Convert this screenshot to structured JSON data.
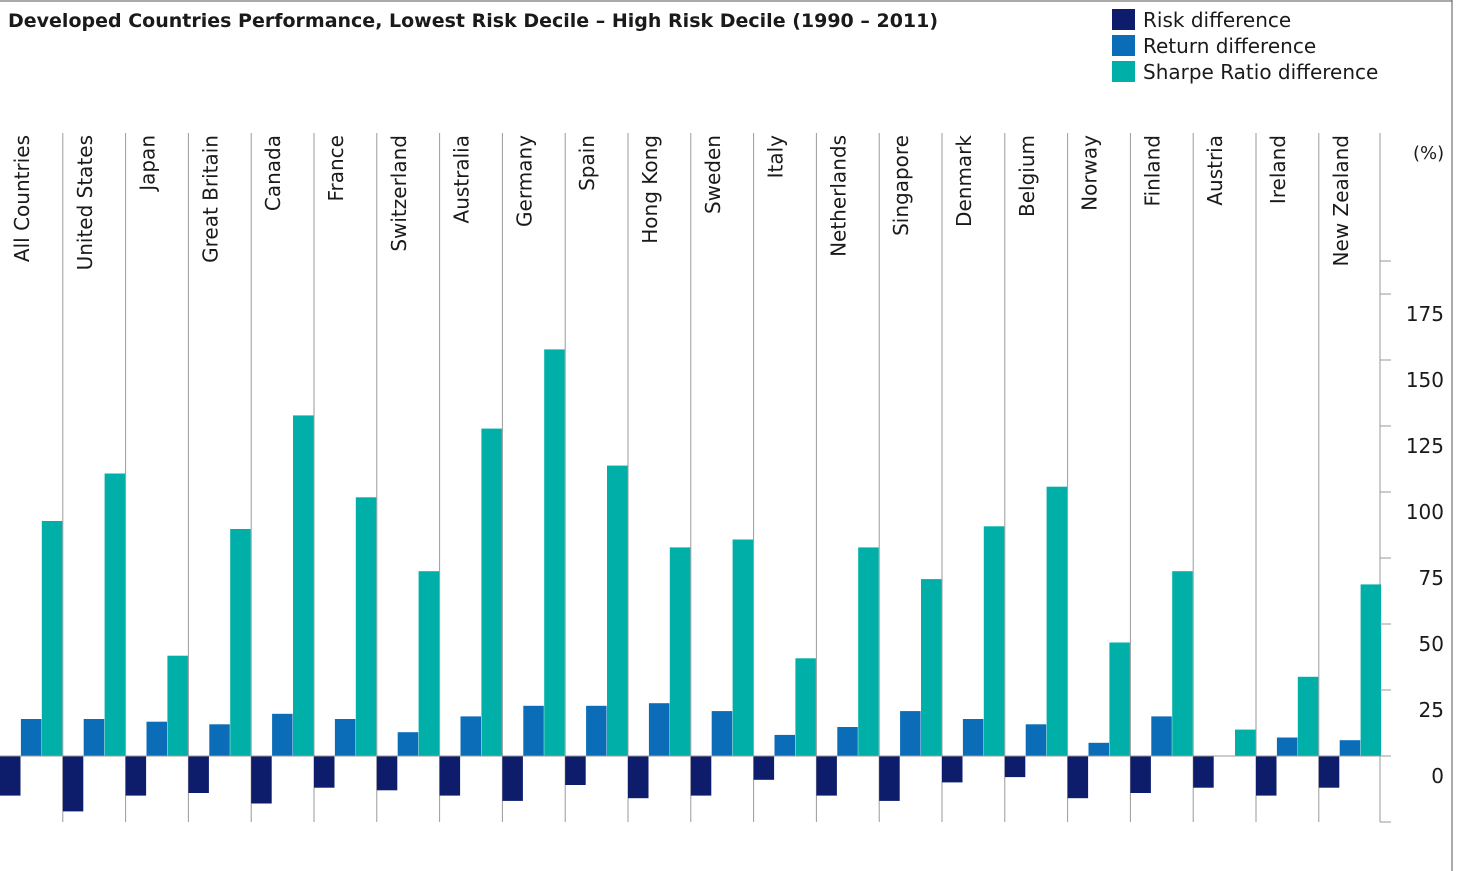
{
  "chart_data": {
    "type": "bar",
    "title": "Developed Countries Performance, Lowest Risk Decile – High Risk Decile (1990 – 2011)",
    "ylabel": "(%)",
    "ylim": [
      -25,
      185
    ],
    "yticks": [
      0,
      25,
      50,
      75,
      100,
      125,
      150,
      175
    ],
    "legend_position": "top-right",
    "grid": false,
    "categories": [
      "All Countries",
      "United States",
      "Japan",
      "Great Britain",
      "Canada",
      "France",
      "Switzerland",
      "Australia",
      "Germany",
      "Spain",
      "Hong Kong",
      "Sweden",
      "Italy",
      "Netherlands",
      "Singapore",
      "Denmark",
      "Belgium",
      "Norway",
      "Finland",
      "Austria",
      "Ireland",
      "New Zealand"
    ],
    "series": [
      {
        "name": "Risk difference",
        "color": "#0d1c6b",
        "values": [
          -15,
          -21,
          -15,
          -14,
          -18,
          -12,
          -13,
          -15,
          -17,
          -11,
          -16,
          -15,
          -9,
          -15,
          -17,
          -10,
          -8,
          -16,
          -14,
          -12,
          -15,
          -12
        ]
      },
      {
        "name": "Return difference",
        "color": "#0b6cb7",
        "values": [
          14,
          14,
          13,
          12,
          16,
          14,
          9,
          15,
          19,
          19,
          20,
          17,
          8,
          11,
          17,
          14,
          12,
          5,
          15,
          0,
          7,
          6
        ]
      },
      {
        "name": "Sharpe Ratio difference",
        "color": "#00b0a8",
        "values": [
          89,
          107,
          38,
          86,
          129,
          98,
          70,
          124,
          154,
          110,
          79,
          82,
          37,
          79,
          67,
          87,
          102,
          43,
          70,
          10,
          30,
          65
        ]
      }
    ]
  }
}
